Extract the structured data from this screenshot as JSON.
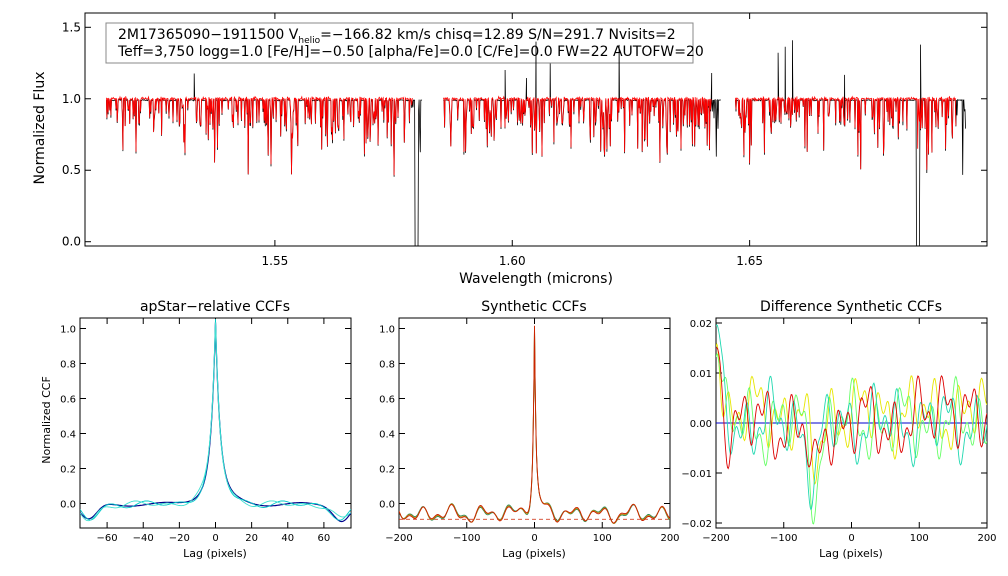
{
  "chart_data": [
    {
      "type": "line",
      "panel": "spectrum",
      "xlabel": "Wavelength (microns)",
      "ylabel": "Normalized Flux",
      "xlim": [
        1.51,
        1.7
      ],
      "ylim": [
        -0.03,
        1.6
      ],
      "xticks": [
        1.55,
        1.6,
        1.65
      ],
      "xtick_labels": [
        "1.55",
        "1.60",
        "1.65"
      ],
      "yticks": [
        0.0,
        0.5,
        1.0,
        1.5
      ],
      "ytick_labels": [
        "0.0",
        "0.5",
        "1.0",
        "1.5"
      ],
      "info_line1": "2M17365090−1911500  V",
      "info_sub": "helio",
      "info_line1b": "=−166.82 km/s  chisq=12.89  S/N=291.7  Nvisits=2",
      "info_line2": "Teff=3,750 logg=1.0 [Fe/H]=−0.50 [alpha/Fe]=0.0 [C/Fe]=0.0 FW=22 AUTOFW=20",
      "chips": [
        [
          1.5145,
          1.581
        ],
        [
          1.5855,
          1.644
        ],
        [
          1.647,
          1.6955
        ]
      ],
      "series": [
        {
          "name": "observed",
          "color": "#000000"
        },
        {
          "name": "model",
          "color": "#ff0000"
        }
      ],
      "deep_lines": [
        1.5798,
        1.5815,
        1.5823,
        1.6855
      ],
      "emission_spikes": [
        1.533,
        1.5985,
        1.603,
        1.605,
        1.608,
        1.6225,
        1.642,
        1.656,
        1.6575,
        1.659,
        1.67,
        1.686
      ]
    },
    {
      "type": "line",
      "panel": "apstar-ccf",
      "title": "apStar−relative CCFs",
      "xlabel": "Lag (pixels)",
      "ylabel": "Normalized CCF",
      "xlim": [
        -75,
        75
      ],
      "ylim": [
        -0.14,
        1.06
      ],
      "xticks": [
        -60,
        -40,
        -20,
        0,
        20,
        40,
        60
      ],
      "xtick_labels": [
        "−60",
        "−40",
        "−20",
        "0",
        "20",
        "40",
        "60"
      ],
      "yticks": [
        0.0,
        0.2,
        0.4,
        0.6,
        0.8,
        1.0
      ],
      "ytick_labels": [
        "0.0",
        "0.2",
        "0.4",
        "0.6",
        "0.8",
        "1.0"
      ],
      "series": [
        {
          "name": "combined",
          "color": "#00008b"
        },
        {
          "name": "visit 1",
          "color": "#00c8c8"
        },
        {
          "name": "visit 2",
          "color": "#40e0d0"
        }
      ],
      "peak": {
        "x": 0,
        "y": 0.99
      }
    },
    {
      "type": "line",
      "panel": "synthetic-ccf",
      "title": "Synthetic CCFs",
      "xlabel": "Lag (pixels)",
      "xlim": [
        -200,
        200
      ],
      "ylim": [
        -0.14,
        1.06
      ],
      "xticks": [
        -200,
        -100,
        0,
        100,
        200
      ],
      "xtick_labels": [
        "−200",
        "−100",
        "0",
        "100",
        "200"
      ],
      "yticks": [
        0.0,
        0.2,
        0.4,
        0.6,
        0.8,
        1.0
      ],
      "ytick_labels": [
        "0.0",
        "0.2",
        "0.4",
        "0.6",
        "0.8",
        "1.0"
      ],
      "series": [
        {
          "name": "visit 1",
          "color": "#2e8b57"
        },
        {
          "name": "visit 2",
          "color": "#b8860b"
        },
        {
          "name": "combined",
          "color": "#cc2200"
        }
      ],
      "peak": {
        "x": 0,
        "y": 1.0
      }
    },
    {
      "type": "line",
      "panel": "difference-ccf",
      "title": "Difference Synthetic CCFs",
      "xlabel": "Lag (pixels)",
      "xlim": [
        -200,
        200
      ],
      "ylim": [
        -0.021,
        0.021
      ],
      "xticks": [
        -200,
        -100,
        0,
        100,
        200
      ],
      "xtick_labels": [
        "−200",
        "−100",
        "0",
        "100",
        "200"
      ],
      "yticks": [
        -0.02,
        -0.01,
        0.0,
        0.01,
        0.02
      ],
      "ytick_labels": [
        "−0.02",
        "−0.01",
        "0.00",
        "0.01",
        "0.02"
      ],
      "series": [
        {
          "name": "zero",
          "color": "#0000cc"
        },
        {
          "name": "diff yellow",
          "color": "#e6e600"
        },
        {
          "name": "diff green",
          "color": "#66ff66"
        },
        {
          "name": "diff cyan",
          "color": "#20d8b0"
        },
        {
          "name": "diff red",
          "color": "#dd0000"
        }
      ]
    }
  ]
}
